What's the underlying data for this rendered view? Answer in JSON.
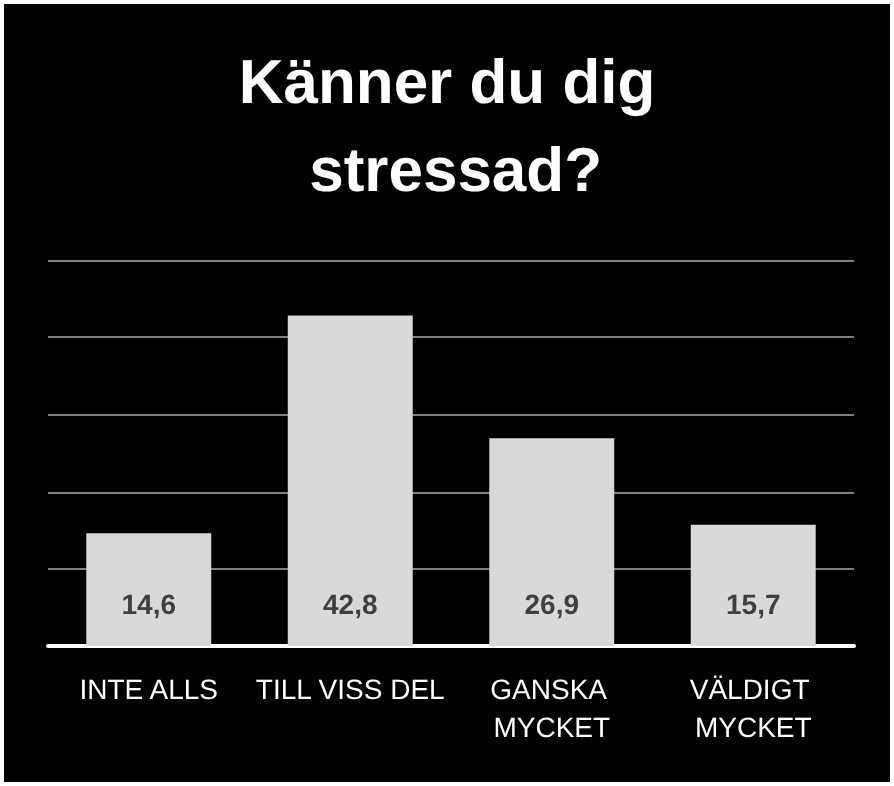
{
  "chart_data": {
    "type": "bar",
    "title": "Känner du dig stressad?",
    "categories": [
      "INTE ALLS",
      "TILL VISS DEL",
      "GANSKA MYCKET",
      "VÄLDIGT MYCKET"
    ],
    "values": [
      14.6,
      42.8,
      26.9,
      15.7
    ],
    "value_labels": [
      "14,6",
      "42,8",
      "26,9",
      "15,7"
    ],
    "color": "#d9d9d9",
    "ylim": [
      0,
      50
    ],
    "yticks": [
      {
        "value": 0,
        "label": null
      },
      {
        "value": 10,
        "label": null
      },
      {
        "value": 20,
        "label": null
      },
      {
        "value": 30,
        "label": null
      },
      {
        "value": 40,
        "label": null
      },
      {
        "value": 50,
        "label": null
      }
    ],
    "grid": "y",
    "tick_labels": "x"
  }
}
